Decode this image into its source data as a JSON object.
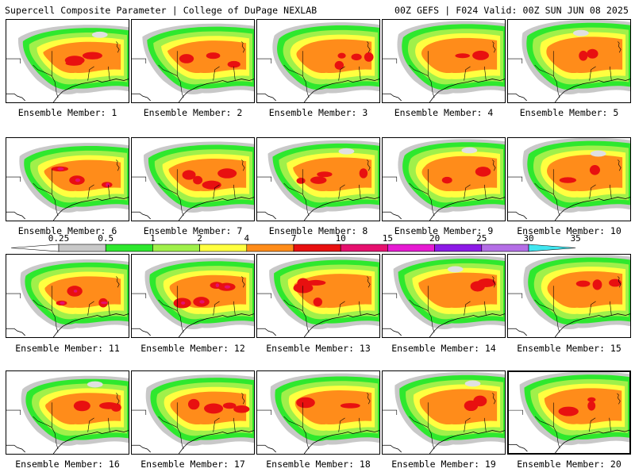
{
  "header": {
    "left": "Supercell Composite Parameter | College of DuPage NEXLAB",
    "right": "00Z GEFS | F024 Valid: 00Z SUN JUN 08 2025"
  },
  "colors": {
    "scale": [
      "#c8c8c8",
      "#2ee82e",
      "#a0f04a",
      "#ffff40",
      "#ff8c1a",
      "#e81010",
      "#e6106e",
      "#e61ad2",
      "#8c1ae6",
      "#b46ee6",
      "#40e6f0"
    ],
    "light_gray": "#e0e0e0"
  },
  "legend": {
    "ticks": [
      "0.25",
      "0.5",
      "1",
      "2",
      "4",
      "7",
      "10",
      "15",
      "20",
      "25",
      "30",
      "35"
    ]
  },
  "members": [
    {
      "label": "Ensemble Member: 1",
      "selected": false
    },
    {
      "label": "Ensemble Member: 2",
      "selected": false
    },
    {
      "label": "Ensemble Member: 3",
      "selected": false
    },
    {
      "label": "Ensemble Member: 4",
      "selected": false
    },
    {
      "label": "Ensemble Member: 5",
      "selected": false
    },
    {
      "label": "Ensemble Member: 6",
      "selected": false
    },
    {
      "label": "Ensemble Member: 7",
      "selected": false
    },
    {
      "label": "Ensemble Member: 8",
      "selected": false
    },
    {
      "label": "Ensemble Member: 9",
      "selected": false
    },
    {
      "label": "Ensemble Member: 10",
      "selected": false
    },
    {
      "label": "Ensemble Member: 11",
      "selected": false
    },
    {
      "label": "Ensemble Member: 12",
      "selected": false
    },
    {
      "label": "Ensemble Member: 13",
      "selected": false
    },
    {
      "label": "Ensemble Member: 14",
      "selected": false
    },
    {
      "label": "Ensemble Member: 15",
      "selected": false
    },
    {
      "label": "Ensemble Member: 16",
      "selected": false
    },
    {
      "label": "Ensemble Member: 17",
      "selected": false
    },
    {
      "label": "Ensemble Member: 18",
      "selected": false
    },
    {
      "label": "Ensemble Member: 19",
      "selected": false
    },
    {
      "label": "Ensemble Member: 20",
      "selected": true
    }
  ]
}
